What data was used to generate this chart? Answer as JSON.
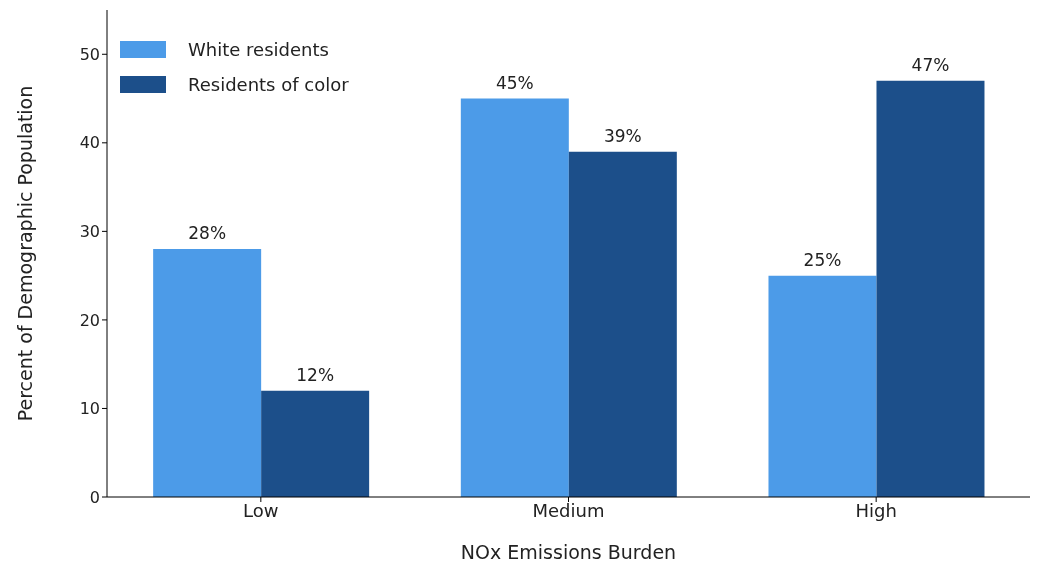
{
  "chart_data": {
    "type": "bar",
    "xlabel": "NOx Emissions Burden",
    "ylabel": "Percent of Demographic Population",
    "categories": [
      "Low",
      "Medium",
      "High"
    ],
    "series": [
      {
        "name": "White residents",
        "color": "#4c9be8",
        "values": [
          28,
          45,
          25
        ],
        "value_labels": [
          "28%",
          "45%",
          "25%"
        ]
      },
      {
        "name": "Residents of color",
        "color": "#1c4f8a",
        "values": [
          12,
          39,
          47
        ],
        "value_labels": [
          "12%",
          "39%",
          "47%"
        ]
      }
    ],
    "ylim": [
      0,
      55
    ],
    "yticks": [
      0,
      10,
      20,
      30,
      40,
      50
    ],
    "grid": false,
    "legend": "top left"
  }
}
